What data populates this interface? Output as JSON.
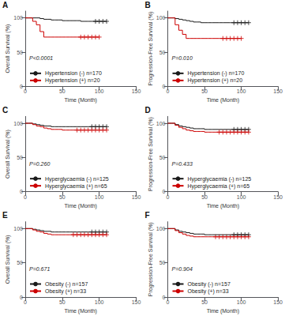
{
  "chart_data": [
    {
      "type": "step",
      "title": "A",
      "xlabel": "Time (Month)",
      "ylabel": "Overall Survival (%)",
      "annotations": [
        "P<0.0001"
      ],
      "legend": "lower left",
      "grid": false,
      "xlim": [
        0,
        150
      ],
      "ylim": [
        0,
        110
      ],
      "xticks": [
        0,
        50,
        100,
        150
      ],
      "yticks": [
        0,
        50,
        100
      ],
      "series": [
        {
          "name": "Hypertension (-) n=170",
          "color": "#1a1a1a",
          "marker": "+",
          "x": [
            0,
            5,
            10,
            15,
            20,
            25,
            30,
            35,
            40,
            45,
            50,
            55,
            60,
            65,
            70,
            75,
            80,
            85,
            90,
            95,
            100,
            105,
            110
          ],
          "values": [
            100,
            100,
            100,
            100,
            99,
            98,
            98,
            97,
            97,
            97,
            96,
            96,
            96,
            96,
            96,
            95,
            95,
            95,
            95,
            95,
            95,
            95,
            95
          ],
          "censor_x": [
            95,
            100,
            105,
            110
          ],
          "censor_values": [
            95,
            95,
            95,
            95
          ]
        },
        {
          "name": "Hypertension (+) n=20",
          "color": "#cc0000",
          "marker": "+",
          "x": [
            0,
            5,
            10,
            15,
            20,
            25,
            30,
            35,
            40,
            45,
            50,
            55,
            60,
            65,
            70,
            75,
            80,
            85,
            90,
            95,
            100
          ],
          "values": [
            100,
            100,
            95,
            90,
            80,
            72,
            72,
            72,
            72,
            72,
            72,
            72,
            72,
            72,
            72,
            72,
            72,
            72,
            72,
            72,
            72
          ],
          "censor_x": [
            75,
            80,
            85,
            90,
            95,
            100
          ],
          "censor_values": [
            72,
            72,
            72,
            72,
            72,
            72
          ]
        }
      ]
    },
    {
      "type": "step",
      "title": "B",
      "xlabel": "Time (Month)",
      "ylabel": "Progression-Free Survival (%)",
      "annotations": [
        "P=0.010"
      ],
      "legend": "lower left",
      "grid": false,
      "xlim": [
        0,
        150
      ],
      "ylim": [
        0,
        110
      ],
      "xticks": [
        0,
        50,
        100,
        150
      ],
      "yticks": [
        0,
        50,
        100
      ],
      "series": [
        {
          "name": "Hypertension (-) n=170",
          "color": "#1a1a1a",
          "marker": "+",
          "x": [
            0,
            5,
            10,
            15,
            20,
            25,
            30,
            35,
            40,
            45,
            50,
            55,
            60,
            65,
            70,
            75,
            80,
            85,
            90,
            95,
            100,
            105,
            110
          ],
          "values": [
            100,
            100,
            99,
            98,
            97,
            96,
            95,
            94,
            94,
            93,
            93,
            93,
            93,
            93,
            93,
            93,
            93,
            93,
            93,
            93,
            93,
            93,
            93
          ],
          "censor_x": [
            90,
            95,
            100,
            105,
            110
          ],
          "censor_values": [
            93,
            93,
            93,
            93,
            93
          ]
        },
        {
          "name": "Hypertension (+) n=20",
          "color": "#cc0000",
          "marker": "+",
          "x": [
            0,
            5,
            10,
            15,
            20,
            25,
            30,
            35,
            40,
            45,
            50,
            55,
            60,
            65,
            70,
            75,
            80,
            85,
            90,
            95,
            100
          ],
          "values": [
            100,
            100,
            90,
            82,
            76,
            70,
            70,
            70,
            70,
            70,
            70,
            70,
            70,
            70,
            70,
            70,
            70,
            70,
            70,
            70,
            70
          ],
          "censor_x": [
            75,
            80,
            85,
            90,
            95,
            100
          ],
          "censor_values": [
            70,
            70,
            70,
            70,
            70,
            70
          ]
        }
      ]
    },
    {
      "type": "step",
      "title": "C",
      "xlabel": "Time (Month)",
      "ylabel": "Overall Survival (%)",
      "annotations": [
        "P=0.260"
      ],
      "legend": "lower left",
      "grid": false,
      "xlim": [
        0,
        150
      ],
      "ylim": [
        0,
        110
      ],
      "xticks": [
        0,
        50,
        100,
        150
      ],
      "yticks": [
        0,
        50,
        100
      ],
      "series": [
        {
          "name": "Hyperglycaemia (-) n=125",
          "color": "#1a1a1a",
          "marker": "+",
          "x": [
            0,
            5,
            10,
            15,
            20,
            25,
            30,
            35,
            40,
            45,
            50,
            55,
            60,
            65,
            70,
            75,
            80,
            85,
            90,
            95,
            100,
            105,
            110
          ],
          "values": [
            100,
            100,
            99,
            98,
            97,
            96,
            96,
            95,
            95,
            95,
            95,
            95,
            95,
            95,
            95,
            95,
            95,
            95,
            95,
            95,
            95,
            95,
            95
          ],
          "censor_x": [
            90,
            95,
            100,
            105,
            110
          ],
          "censor_values": [
            95,
            95,
            95,
            95,
            95
          ]
        },
        {
          "name": "Hyperglycaemia (+) n=65",
          "color": "#cc0000",
          "marker": "+",
          "x": [
            0,
            5,
            10,
            15,
            20,
            25,
            30,
            35,
            40,
            45,
            50,
            55,
            60,
            65,
            70,
            75,
            80,
            85,
            90,
            95,
            100,
            105,
            110
          ],
          "values": [
            100,
            100,
            98,
            96,
            95,
            93,
            92,
            91,
            91,
            91,
            90,
            90,
            90,
            90,
            90,
            90,
            90,
            90,
            90,
            90,
            90,
            90,
            90
          ],
          "censor_x": [
            70,
            75,
            80,
            85,
            90,
            95,
            100,
            105,
            110
          ],
          "censor_values": [
            90,
            90,
            90,
            90,
            90,
            90,
            90,
            90,
            90
          ]
        }
      ]
    },
    {
      "type": "step",
      "title": "D",
      "xlabel": "Time (Month)",
      "ylabel": "Progression-Free Survival (%)",
      "annotations": [
        "P=0.433"
      ],
      "legend": "lower left",
      "grid": false,
      "xlim": [
        0,
        150
      ],
      "ylim": [
        0,
        110
      ],
      "xticks": [
        0,
        50,
        100,
        150
      ],
      "yticks": [
        0,
        50,
        100
      ],
      "series": [
        {
          "name": "Hyperglycaemia (-) n=125",
          "color": "#1a1a1a",
          "marker": "+",
          "x": [
            0,
            5,
            10,
            15,
            20,
            25,
            30,
            35,
            40,
            45,
            50,
            55,
            60,
            65,
            70,
            75,
            80,
            85,
            90,
            95,
            100,
            105,
            110
          ],
          "values": [
            100,
            100,
            98,
            96,
            95,
            94,
            93,
            92,
            92,
            92,
            91,
            91,
            91,
            91,
            91,
            91,
            91,
            91,
            91,
            91,
            91,
            91,
            91
          ],
          "censor_x": [
            90,
            95,
            100,
            105,
            110
          ],
          "censor_values": [
            91,
            91,
            91,
            91,
            91
          ]
        },
        {
          "name": "Hyperglycaemia (+) n=65",
          "color": "#cc0000",
          "marker": "+",
          "x": [
            0,
            5,
            10,
            15,
            20,
            25,
            30,
            35,
            40,
            45,
            50,
            55,
            60,
            65,
            70,
            75,
            80,
            85,
            90,
            95,
            100,
            105,
            110
          ],
          "values": [
            100,
            100,
            97,
            94,
            92,
            90,
            89,
            88,
            88,
            88,
            87,
            87,
            87,
            87,
            87,
            87,
            87,
            87,
            87,
            87,
            87,
            87,
            87
          ],
          "censor_x": [
            70,
            75,
            80,
            85,
            90,
            95,
            100,
            105,
            110
          ],
          "censor_values": [
            87,
            87,
            87,
            87,
            87,
            87,
            87,
            87,
            87
          ]
        }
      ]
    },
    {
      "type": "step",
      "title": "E",
      "xlabel": "Time (Month)",
      "ylabel": "Overall Survival (%)",
      "annotations": [
        "P=0.671"
      ],
      "legend": "lower left",
      "grid": false,
      "xlim": [
        0,
        150
      ],
      "ylim": [
        0,
        110
      ],
      "xticks": [
        0,
        50,
        100,
        150
      ],
      "yticks": [
        0,
        50,
        100
      ],
      "series": [
        {
          "name": "Obesity (-) n=157",
          "color": "#1a1a1a",
          "marker": "+",
          "x": [
            0,
            5,
            10,
            15,
            20,
            25,
            30,
            35,
            40,
            45,
            50,
            55,
            60,
            65,
            70,
            75,
            80,
            85,
            90,
            95,
            100,
            105,
            110
          ],
          "values": [
            100,
            100,
            99,
            98,
            97,
            96,
            96,
            95,
            95,
            95,
            95,
            95,
            95,
            95,
            95,
            95,
            95,
            95,
            95,
            95,
            95,
            95,
            95
          ],
          "censor_x": [
            90,
            95,
            100,
            105,
            110
          ],
          "censor_values": [
            95,
            95,
            95,
            95,
            95
          ]
        },
        {
          "name": "Obesity (+) n=33",
          "color": "#cc0000",
          "marker": "+",
          "x": [
            0,
            5,
            10,
            15,
            20,
            25,
            30,
            35,
            40,
            45,
            50,
            55,
            60,
            65,
            70,
            75,
            80,
            85,
            90,
            95,
            100,
            105,
            110
          ],
          "values": [
            100,
            100,
            98,
            96,
            95,
            93,
            92,
            91,
            91,
            91,
            91,
            91,
            91,
            91,
            91,
            91,
            91,
            91,
            91,
            91,
            91,
            91,
            91
          ],
          "censor_x": [
            65,
            70,
            75,
            80,
            85,
            90,
            95,
            100,
            105,
            110
          ],
          "censor_values": [
            91,
            91,
            91,
            91,
            91,
            91,
            91,
            91,
            91,
            91
          ]
        }
      ]
    },
    {
      "type": "step",
      "title": "F",
      "xlabel": "Time (Month)",
      "ylabel": "Progression-Free Survival (%)",
      "annotations": [
        "P=0.904"
      ],
      "legend": "lower left",
      "grid": false,
      "xlim": [
        0,
        150
      ],
      "ylim": [
        0,
        110
      ],
      "xticks": [
        0,
        50,
        100,
        150
      ],
      "yticks": [
        0,
        50,
        100
      ],
      "series": [
        {
          "name": "Obesity (-) n=157",
          "color": "#1a1a1a",
          "marker": "+",
          "x": [
            0,
            5,
            10,
            15,
            20,
            25,
            30,
            35,
            40,
            45,
            50,
            55,
            60,
            65,
            70,
            75,
            80,
            85,
            90,
            95,
            100,
            105,
            110
          ],
          "values": [
            100,
            100,
            98,
            96,
            95,
            94,
            93,
            92,
            92,
            92,
            91,
            91,
            91,
            91,
            91,
            91,
            91,
            91,
            91,
            91,
            91,
            91,
            91
          ],
          "censor_x": [
            90,
            95,
            100,
            105,
            110
          ],
          "censor_values": [
            91,
            91,
            91,
            91,
            91
          ]
        },
        {
          "name": "Obesity (+) n=33",
          "color": "#cc0000",
          "marker": "+",
          "x": [
            0,
            5,
            10,
            15,
            20,
            25,
            30,
            35,
            40,
            45,
            50,
            55,
            60,
            65,
            70,
            75,
            80,
            85,
            90,
            95,
            100,
            105,
            110
          ],
          "values": [
            100,
            100,
            97,
            94,
            92,
            90,
            89,
            88,
            88,
            88,
            88,
            88,
            88,
            88,
            88,
            88,
            88,
            88,
            88,
            88,
            88,
            88,
            88
          ],
          "censor_x": [
            65,
            70,
            75,
            80,
            85,
            90,
            95,
            100,
            105,
            110
          ],
          "censor_values": [
            88,
            88,
            88,
            88,
            88,
            88,
            88,
            88,
            88,
            88
          ]
        }
      ]
    }
  ]
}
